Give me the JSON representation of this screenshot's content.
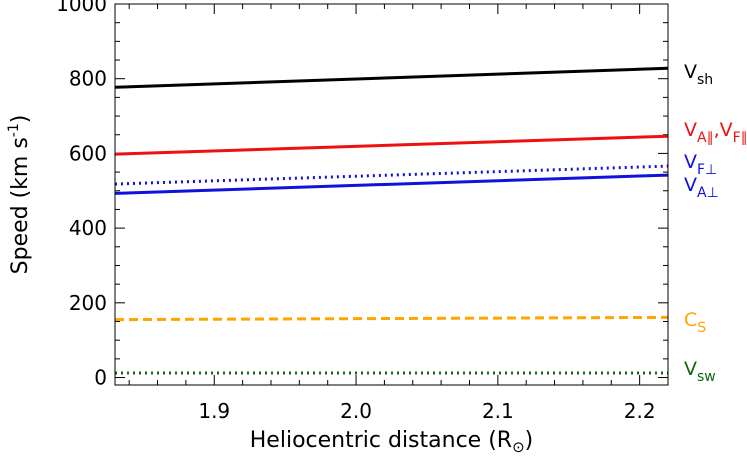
{
  "chart_data": {
    "type": "line",
    "xlabel": "Heliocentric distance (R",
    "xlabel_symbol": "⊙",
    "xlabel_close": ")",
    "ylabel": "Speed (km s",
    "ylabel_sup": "-1",
    "ylabel_close": ")",
    "xlim": [
      1.83,
      2.22
    ],
    "ylim": [
      -20,
      1000
    ],
    "xticks": [
      1.9,
      2.0,
      2.1,
      2.2
    ],
    "xtick_labels": [
      "1.9",
      "2.0",
      "2.1",
      "2.2"
    ],
    "yticks": [
      0,
      200,
      400,
      600,
      800,
      1000
    ],
    "ytick_labels": [
      "0",
      "200",
      "400",
      "600",
      "800",
      "1000"
    ],
    "grid": false,
    "legend": "right (inline labels beside each curve)",
    "series": [
      {
        "name": "Vsh",
        "base": "V",
        "sub": "sh",
        "color": "#000000",
        "style": "solid",
        "x": [
          1.83,
          2.22
        ],
        "y": [
          777,
          828
        ]
      },
      {
        "name": "VA∥,VF∥",
        "base": "V",
        "sub": "A∥",
        "base2": "V",
        "sub2": "F∥",
        "sep": ",",
        "color": "#ee1111",
        "style": "solid",
        "x": [
          1.83,
          2.22
        ],
        "y": [
          598,
          646
        ]
      },
      {
        "name": "VF⊥",
        "base": "V",
        "sub": "F⊥",
        "color": "#1111dd",
        "style": "dotted",
        "x": [
          1.83,
          2.22
        ],
        "y": [
          518,
          566
        ]
      },
      {
        "name": "VA⊥",
        "base": "V",
        "sub": "A⊥",
        "color": "#1111dd",
        "style": "solid",
        "x": [
          1.83,
          2.22
        ],
        "y": [
          493,
          542
        ]
      },
      {
        "name": "CS",
        "base": "C",
        "sub": "S",
        "color": "#ffa500",
        "style": "dashed",
        "x": [
          1.83,
          2.22
        ],
        "y": [
          155,
          161
        ]
      },
      {
        "name": "Vsw",
        "base": "V",
        "sub": "sw",
        "color": "#116611",
        "style": "dotted",
        "x": [
          1.83,
          2.22
        ],
        "y": [
          12,
          12
        ]
      }
    ]
  }
}
